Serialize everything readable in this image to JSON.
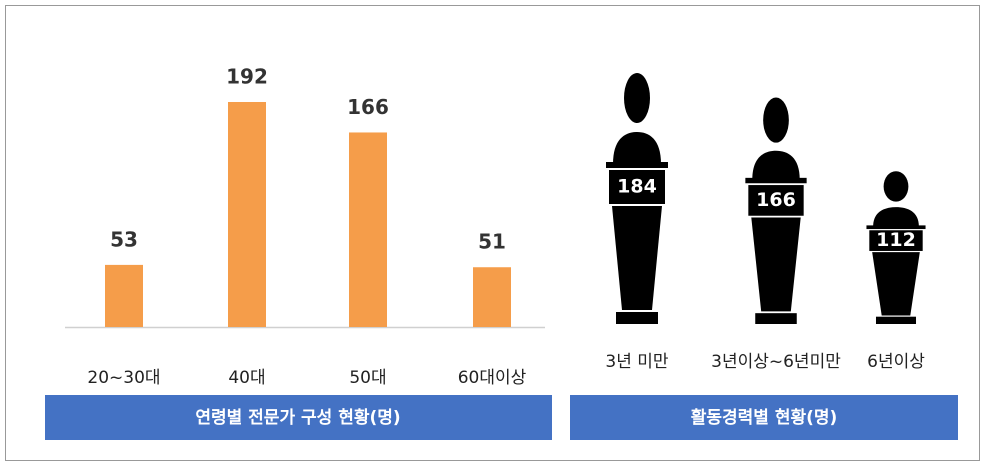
{
  "chart_data": [
    {
      "type": "bar",
      "title": "연령별 전문가 구성 현황(명)",
      "categories": [
        "20~30대",
        "40대",
        "50대",
        "60대이상"
      ],
      "values": [
        53,
        192,
        166,
        51
      ],
      "color": "#f59d4a"
    },
    {
      "type": "pictograph",
      "title": "활동경력별 현황(명)",
      "categories": [
        "3년 미만",
        "3년이상~6년미만",
        "6년이상"
      ],
      "values": [
        184,
        166,
        112
      ],
      "color": "#000000"
    }
  ]
}
